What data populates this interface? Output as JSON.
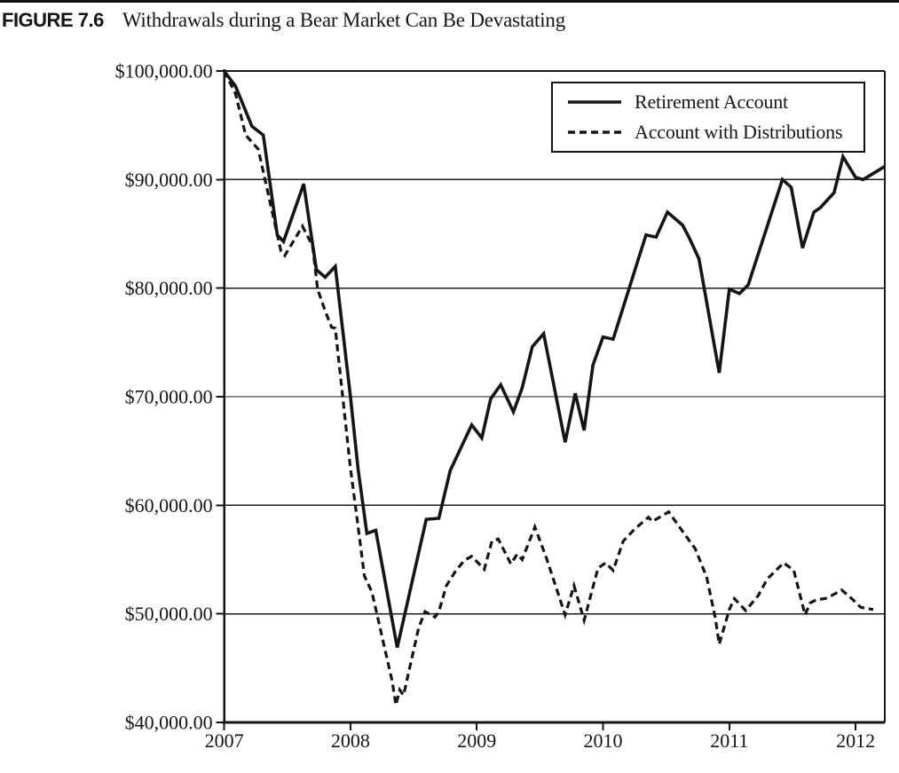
{
  "page": {
    "figure_label": "FIGURE 7.6",
    "figure_title": "Withdrawals during a Bear Market Can Be Devastating"
  },
  "chart_data": {
    "type": "line",
    "title": "Withdrawals during a Bear Market Can Be Devastating",
    "xlabel": "",
    "ylabel": "",
    "grid": "horizontal",
    "line_color": "#151515",
    "x_axis": {
      "tick_labels": [
        "2007",
        "2008",
        "2009",
        "2010",
        "2011",
        "2012"
      ],
      "tick_values": [
        2007,
        2008,
        2009,
        2010,
        2011,
        2012
      ],
      "range": [
        2007.0,
        2012.23
      ]
    },
    "y_axis": {
      "tick_labels": [
        "$40,000.00",
        "$50,000.00",
        "$60,000.00",
        "$70,000.00",
        "$80,000.00",
        "$90,000.00",
        "$100,000.00"
      ],
      "tick_values": [
        40000,
        50000,
        60000,
        70000,
        80000,
        90000,
        100000
      ],
      "range": [
        40000,
        100000
      ]
    },
    "legend": {
      "position": "top-right",
      "entries": [
        {
          "label": "Retirement Account",
          "style": "solid"
        },
        {
          "label": "Account with Distributions",
          "style": "dashed"
        }
      ]
    },
    "series": [
      {
        "name": "Retirement Account",
        "style": "solid",
        "points": [
          [
            2007.0,
            100000
          ],
          [
            2007.09,
            98600
          ],
          [
            2007.22,
            94900
          ],
          [
            2007.31,
            94100
          ],
          [
            2007.42,
            84900
          ],
          [
            2007.47,
            84300
          ],
          [
            2007.63,
            89600
          ],
          [
            2007.73,
            81700
          ],
          [
            2007.8,
            81000
          ],
          [
            2007.88,
            82000
          ],
          [
            2008.0,
            70000
          ],
          [
            2008.06,
            63400
          ],
          [
            2008.13,
            57400
          ],
          [
            2008.2,
            57700
          ],
          [
            2008.37,
            46900
          ],
          [
            2008.6,
            58700
          ],
          [
            2008.7,
            58800
          ],
          [
            2008.79,
            63200
          ],
          [
            2008.96,
            67400
          ],
          [
            2009.04,
            66200
          ],
          [
            2009.11,
            69800
          ],
          [
            2009.19,
            71100
          ],
          [
            2009.29,
            68600
          ],
          [
            2009.36,
            70800
          ],
          [
            2009.44,
            74600
          ],
          [
            2009.53,
            75800
          ],
          [
            2009.7,
            65800
          ],
          [
            2009.78,
            70300
          ],
          [
            2009.85,
            66900
          ],
          [
            2009.92,
            72900
          ],
          [
            2010.0,
            75500
          ],
          [
            2010.08,
            75300
          ],
          [
            2010.34,
            84900
          ],
          [
            2010.42,
            84700
          ],
          [
            2010.51,
            87000
          ],
          [
            2010.63,
            85800
          ],
          [
            2010.68,
            84700
          ],
          [
            2010.76,
            82700
          ],
          [
            2010.92,
            72200
          ],
          [
            2011.0,
            79900
          ],
          [
            2011.08,
            79500
          ],
          [
            2011.15,
            80300
          ],
          [
            2011.42,
            90000
          ],
          [
            2011.49,
            89300
          ],
          [
            2011.58,
            83700
          ],
          [
            2011.67,
            87000
          ],
          [
            2011.72,
            87400
          ],
          [
            2011.83,
            88800
          ],
          [
            2011.9,
            92100
          ],
          [
            2012.0,
            90200
          ],
          [
            2012.06,
            90000
          ],
          [
            2012.23,
            91200
          ]
        ]
      },
      {
        "name": "Account with Distributions",
        "style": "dashed",
        "points": [
          [
            2007.0,
            100000
          ],
          [
            2007.09,
            97900
          ],
          [
            2007.17,
            94100
          ],
          [
            2007.27,
            92800
          ],
          [
            2007.45,
            83400
          ],
          [
            2007.48,
            83000
          ],
          [
            2007.62,
            85700
          ],
          [
            2007.7,
            83900
          ],
          [
            2007.74,
            79900
          ],
          [
            2007.8,
            77900
          ],
          [
            2007.85,
            76400
          ],
          [
            2007.88,
            76300
          ],
          [
            2008.0,
            63400
          ],
          [
            2008.05,
            59000
          ],
          [
            2008.11,
            53500
          ],
          [
            2008.17,
            52000
          ],
          [
            2008.33,
            43800
          ],
          [
            2008.36,
            41600
          ],
          [
            2008.39,
            43000
          ],
          [
            2008.42,
            42500
          ],
          [
            2008.54,
            48700
          ],
          [
            2008.59,
            50200
          ],
          [
            2008.67,
            49700
          ],
          [
            2008.7,
            50200
          ],
          [
            2008.76,
            52600
          ],
          [
            2008.83,
            53900
          ],
          [
            2008.9,
            54900
          ],
          [
            2008.96,
            55300
          ],
          [
            2009.06,
            54100
          ],
          [
            2009.12,
            56700
          ],
          [
            2009.17,
            56900
          ],
          [
            2009.27,
            54600
          ],
          [
            2009.32,
            55500
          ],
          [
            2009.36,
            55000
          ],
          [
            2009.46,
            58000
          ],
          [
            2009.55,
            55200
          ],
          [
            2009.7,
            49900
          ],
          [
            2009.77,
            52600
          ],
          [
            2009.85,
            49400
          ],
          [
            2009.96,
            54200
          ],
          [
            2010.02,
            54700
          ],
          [
            2010.08,
            54000
          ],
          [
            2010.16,
            56700
          ],
          [
            2010.25,
            57800
          ],
          [
            2010.36,
            58900
          ],
          [
            2010.39,
            58500
          ],
          [
            2010.52,
            59400
          ],
          [
            2010.63,
            57600
          ],
          [
            2010.73,
            56000
          ],
          [
            2010.82,
            53400
          ],
          [
            2010.89,
            49600
          ],
          [
            2010.92,
            47200
          ],
          [
            2011.0,
            50400
          ],
          [
            2011.04,
            51400
          ],
          [
            2011.13,
            50300
          ],
          [
            2011.23,
            51700
          ],
          [
            2011.3,
            53200
          ],
          [
            2011.43,
            54700
          ],
          [
            2011.51,
            54000
          ],
          [
            2011.6,
            49900
          ],
          [
            2011.64,
            51000
          ],
          [
            2011.69,
            51300
          ],
          [
            2011.76,
            51400
          ],
          [
            2011.83,
            51800
          ],
          [
            2011.89,
            52200
          ],
          [
            2011.97,
            51400
          ],
          [
            2012.04,
            50600
          ],
          [
            2012.14,
            50400
          ]
        ]
      }
    ]
  }
}
